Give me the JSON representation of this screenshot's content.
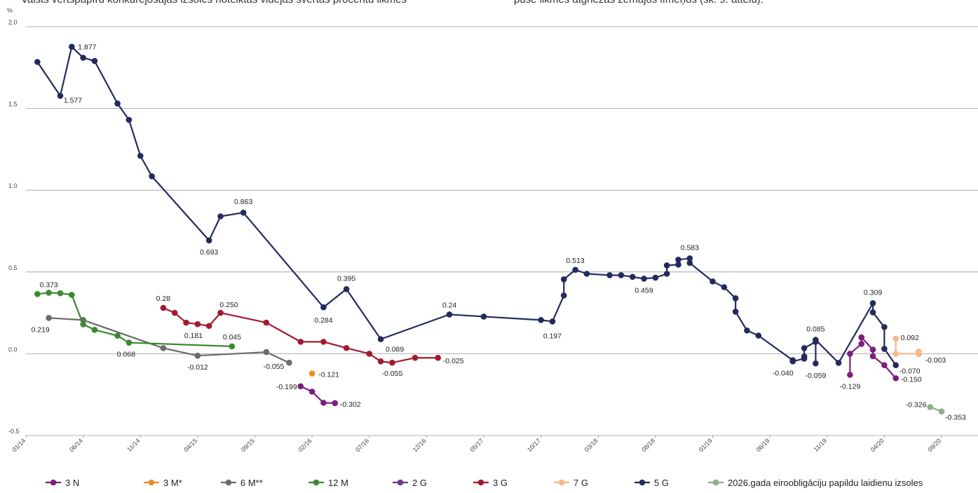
{
  "document_text": [
    "Valsts vērtspapīru konkurējošajās izsolēs noteiktās vidējās svērtās procentu likmes",
    "pusē likmes atgriezās zemajos līmeņos (sk. 9. attēlu)."
  ],
  "chart_data": {
    "type": "line",
    "y_unit": "%",
    "xlim": [
      "01/14",
      "12/20"
    ],
    "xticks": [
      "01/14",
      "06/14",
      "11/14",
      "04/15",
      "09/15",
      "02/16",
      "07/16",
      "12/16",
      "05/17",
      "10/17",
      "03/18",
      "08/18",
      "01/19",
      "06/19",
      "11/19",
      "04/20",
      "09/20"
    ],
    "ylim": [
      -0.5,
      2.0
    ],
    "yticks": [
      {
        "value": -0.5,
        "label": "-0.5"
      },
      {
        "value": 0,
        "label": "0.0"
      },
      {
        "value": 0.5,
        "label": "0.5"
      },
      {
        "value": 1,
        "label": "1.0"
      },
      {
        "value": 1.5,
        "label": "1.5"
      },
      {
        "value": 2,
        "label": "2.0"
      }
    ],
    "grid": true,
    "series": [
      {
        "name": "3 N",
        "color": "#7b1f7c",
        "x": [
          "01/16",
          "02/16",
          "03/16",
          "04/16",
          null,
          "01/20",
          "01/20",
          "02/20",
          "02/20",
          "03/20",
          "03/20",
          "04/20",
          "05/20"
        ],
        "values": [
          -0.199,
          -0.232,
          -0.3,
          -0.302,
          null,
          -0.129,
          0.0,
          0.06,
          0.1,
          0.025,
          -0.015,
          -0.07,
          -0.15
        ],
        "value_labels": [
          "-0.199",
          null,
          null,
          "-0.302",
          null,
          "-0.129",
          null,
          null,
          null,
          null,
          null,
          null,
          "-0.150"
        ]
      },
      {
        "name": "3 M*",
        "color": "#f28a25",
        "x": [
          "02/16"
        ],
        "values": [
          -0.121
        ],
        "value_labels": [
          "-0.121"
        ]
      },
      {
        "name": "6 M**",
        "color": "#6b6b6b",
        "x": [
          "03/14",
          "06/14",
          "01/15",
          "04/15",
          "10/15",
          "12/15"
        ],
        "values": [
          0.219,
          0.206,
          0.034,
          -0.012,
          0.01,
          -0.055
        ],
        "value_labels": [
          "0.219",
          null,
          null,
          "-0.012",
          null,
          "-0.055"
        ]
      },
      {
        "name": "12 M",
        "color": "#3b8a2f",
        "x": [
          "02/14",
          "03/14",
          "04/14",
          "05/14",
          "06/14",
          "07/14",
          "09/14",
          "10/14",
          "07/15"
        ],
        "values": [
          0.365,
          0.373,
          0.37,
          0.36,
          0.18,
          0.146,
          0.11,
          0.068,
          0.045
        ],
        "value_labels": [
          null,
          "0.373",
          null,
          null,
          null,
          null,
          null,
          "0.068",
          "0.045"
        ]
      },
      {
        "name": "2 G",
        "color": "#6b3d8f",
        "x": [],
        "values": [],
        "value_labels": []
      },
      {
        "name": "3 G",
        "color": "#a31a30",
        "x": [
          "01/15",
          "02/15",
          "03/15",
          "04/15",
          "05/15",
          "06/15",
          "10/15",
          "01/16",
          "03/16",
          "05/16",
          "07/16",
          "08/16",
          "09/16",
          "11/16",
          "01/17"
        ],
        "values": [
          0.28,
          0.25,
          0.19,
          0.181,
          0.17,
          0.25,
          0.19,
          0.073,
          0.073,
          0.035,
          0.0,
          -0.047,
          -0.055,
          -0.025,
          -0.025
        ],
        "value_labels": [
          "0.28",
          null,
          null,
          "0.181",
          null,
          "0.250",
          null,
          null,
          null,
          null,
          null,
          null,
          "-0.055",
          null,
          "-0.025"
        ]
      },
      {
        "name": "7 G",
        "color": "#f6b98a",
        "x": [
          "05/20",
          "05/20",
          "07/20",
          "07/20",
          "07/20"
        ],
        "values": [
          0.092,
          0.0,
          0.0,
          0.013,
          -0.003
        ],
        "value_labels": [
          "0.092",
          null,
          null,
          null,
          "-0.003"
        ]
      },
      {
        "name": "5 G",
        "color": "#232a5e",
        "x": [
          "02/14",
          "04/14",
          "05/14",
          "06/14",
          "07/14",
          "09/14",
          "10/14",
          "11/14",
          "12/14",
          "05/15",
          "06/15",
          "08/15",
          "03/16",
          "05/16",
          "08/16",
          "02/17",
          "05/17",
          "10/17",
          "11/17",
          "12/17",
          "12/17",
          "01/18",
          "02/18",
          "04/18",
          "05/18",
          "06/18",
          "07/18",
          "08/18",
          "09/18",
          "09/18",
          "10/18",
          "10/18",
          "11/18",
          "11/18",
          "01/19",
          "02/19",
          "03/19",
          "03/19",
          "04/19",
          "05/19",
          "08/19",
          "08/19",
          "09/19",
          "09/19",
          "09/19",
          "10/19",
          "10/19",
          "10/19",
          "12/19",
          "03/20",
          "03/20",
          "04/20",
          "04/20",
          "05/20"
        ],
        "values": [
          1.784,
          1.577,
          1.877,
          1.81,
          1.79,
          1.53,
          1.43,
          1.21,
          1.085,
          0.693,
          0.84,
          0.863,
          0.284,
          0.395,
          0.089,
          0.24,
          0.227,
          0.206,
          0.197,
          0.356,
          0.455,
          0.513,
          0.489,
          0.48,
          0.48,
          0.47,
          0.459,
          0.465,
          0.489,
          0.54,
          0.545,
          0.575,
          0.583,
          0.555,
          0.442,
          0.407,
          0.339,
          0.257,
          0.142,
          0.111,
          -0.04,
          -0.047,
          -0.03,
          -0.017,
          0.034,
          0.073,
          -0.059,
          0.085,
          -0.056,
          0.309,
          0.253,
          0.163,
          0.03,
          -0.07
        ],
        "value_labels": [
          null,
          "1.577",
          "1.877",
          null,
          null,
          null,
          null,
          null,
          null,
          "0.693",
          null,
          "0.863",
          "0.284",
          "0.395",
          "0.089",
          "0.24",
          null,
          null,
          "0.197",
          null,
          null,
          "0.513",
          null,
          null,
          null,
          null,
          "0.459",
          null,
          null,
          null,
          null,
          null,
          "0.583",
          null,
          null,
          null,
          null,
          null,
          null,
          null,
          "-0.040",
          null,
          null,
          null,
          null,
          null,
          "-0.059",
          "0.085",
          null,
          "0.309",
          null,
          null,
          null,
          "-0.070"
        ]
      },
      {
        "name": "2026.gada eiroobligāciju papildu laidienu izsoles",
        "color": "#8fae8a",
        "x": [
          "08/20",
          "09/20"
        ],
        "values": [
          -0.326,
          -0.353
        ],
        "value_labels": [
          "-0.326",
          "-0.353"
        ]
      }
    ]
  }
}
